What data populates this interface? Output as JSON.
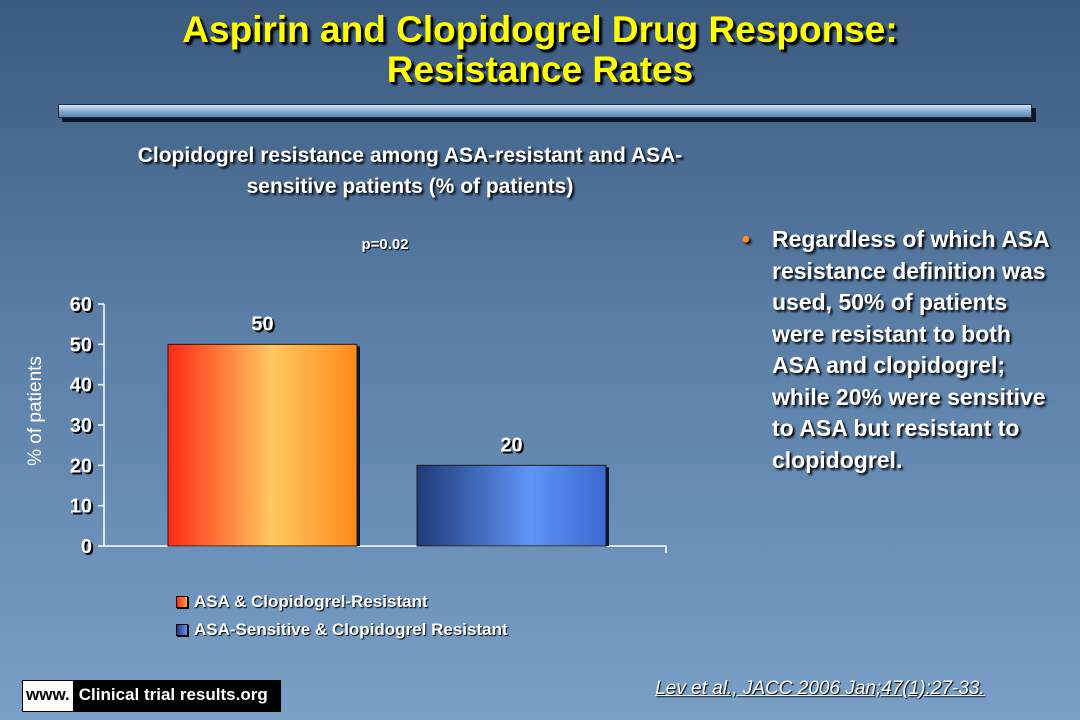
{
  "slide": {
    "title_line1": "Aspirin and Clopidogrel Drug Response:",
    "title_line2": "Resistance Rates",
    "bullet": "Regardless of which ASA resistance definition was used, 50% of patients were resistant to both ASA and clopidogrel; while 20% were sensitive to ASA but resistant to clopidogrel.",
    "citation": "Lev et al., JACC 2006 Jan;47(1):27-33.",
    "brand_www": "www.",
    "brand_site": "Clinical trial results.org",
    "colors": {
      "title": "#ffff00",
      "bullet_dot": "#ff8c1a"
    }
  },
  "chart_data": {
    "type": "bar",
    "title_line1": "Clopidogrel resistance among ASA-resistant and ASA-",
    "title_line2": "sensitive patients (% of patients)",
    "annotation": "p=0.02",
    "ylabel": "% of patients",
    "ylim": [
      0,
      60
    ],
    "yticks": [
      0,
      10,
      20,
      30,
      40,
      50,
      60
    ],
    "grid": false,
    "legend_position": "bottom",
    "series": [
      {
        "name": "ASA & Clopidogrel-Resistant",
        "value": 50,
        "label": "50",
        "color": "#ff3b1a"
      },
      {
        "name": "ASA-Sensitive & Clopidogrel Resistant",
        "value": 20,
        "label": "20",
        "color": "#3f6fd8"
      }
    ]
  }
}
